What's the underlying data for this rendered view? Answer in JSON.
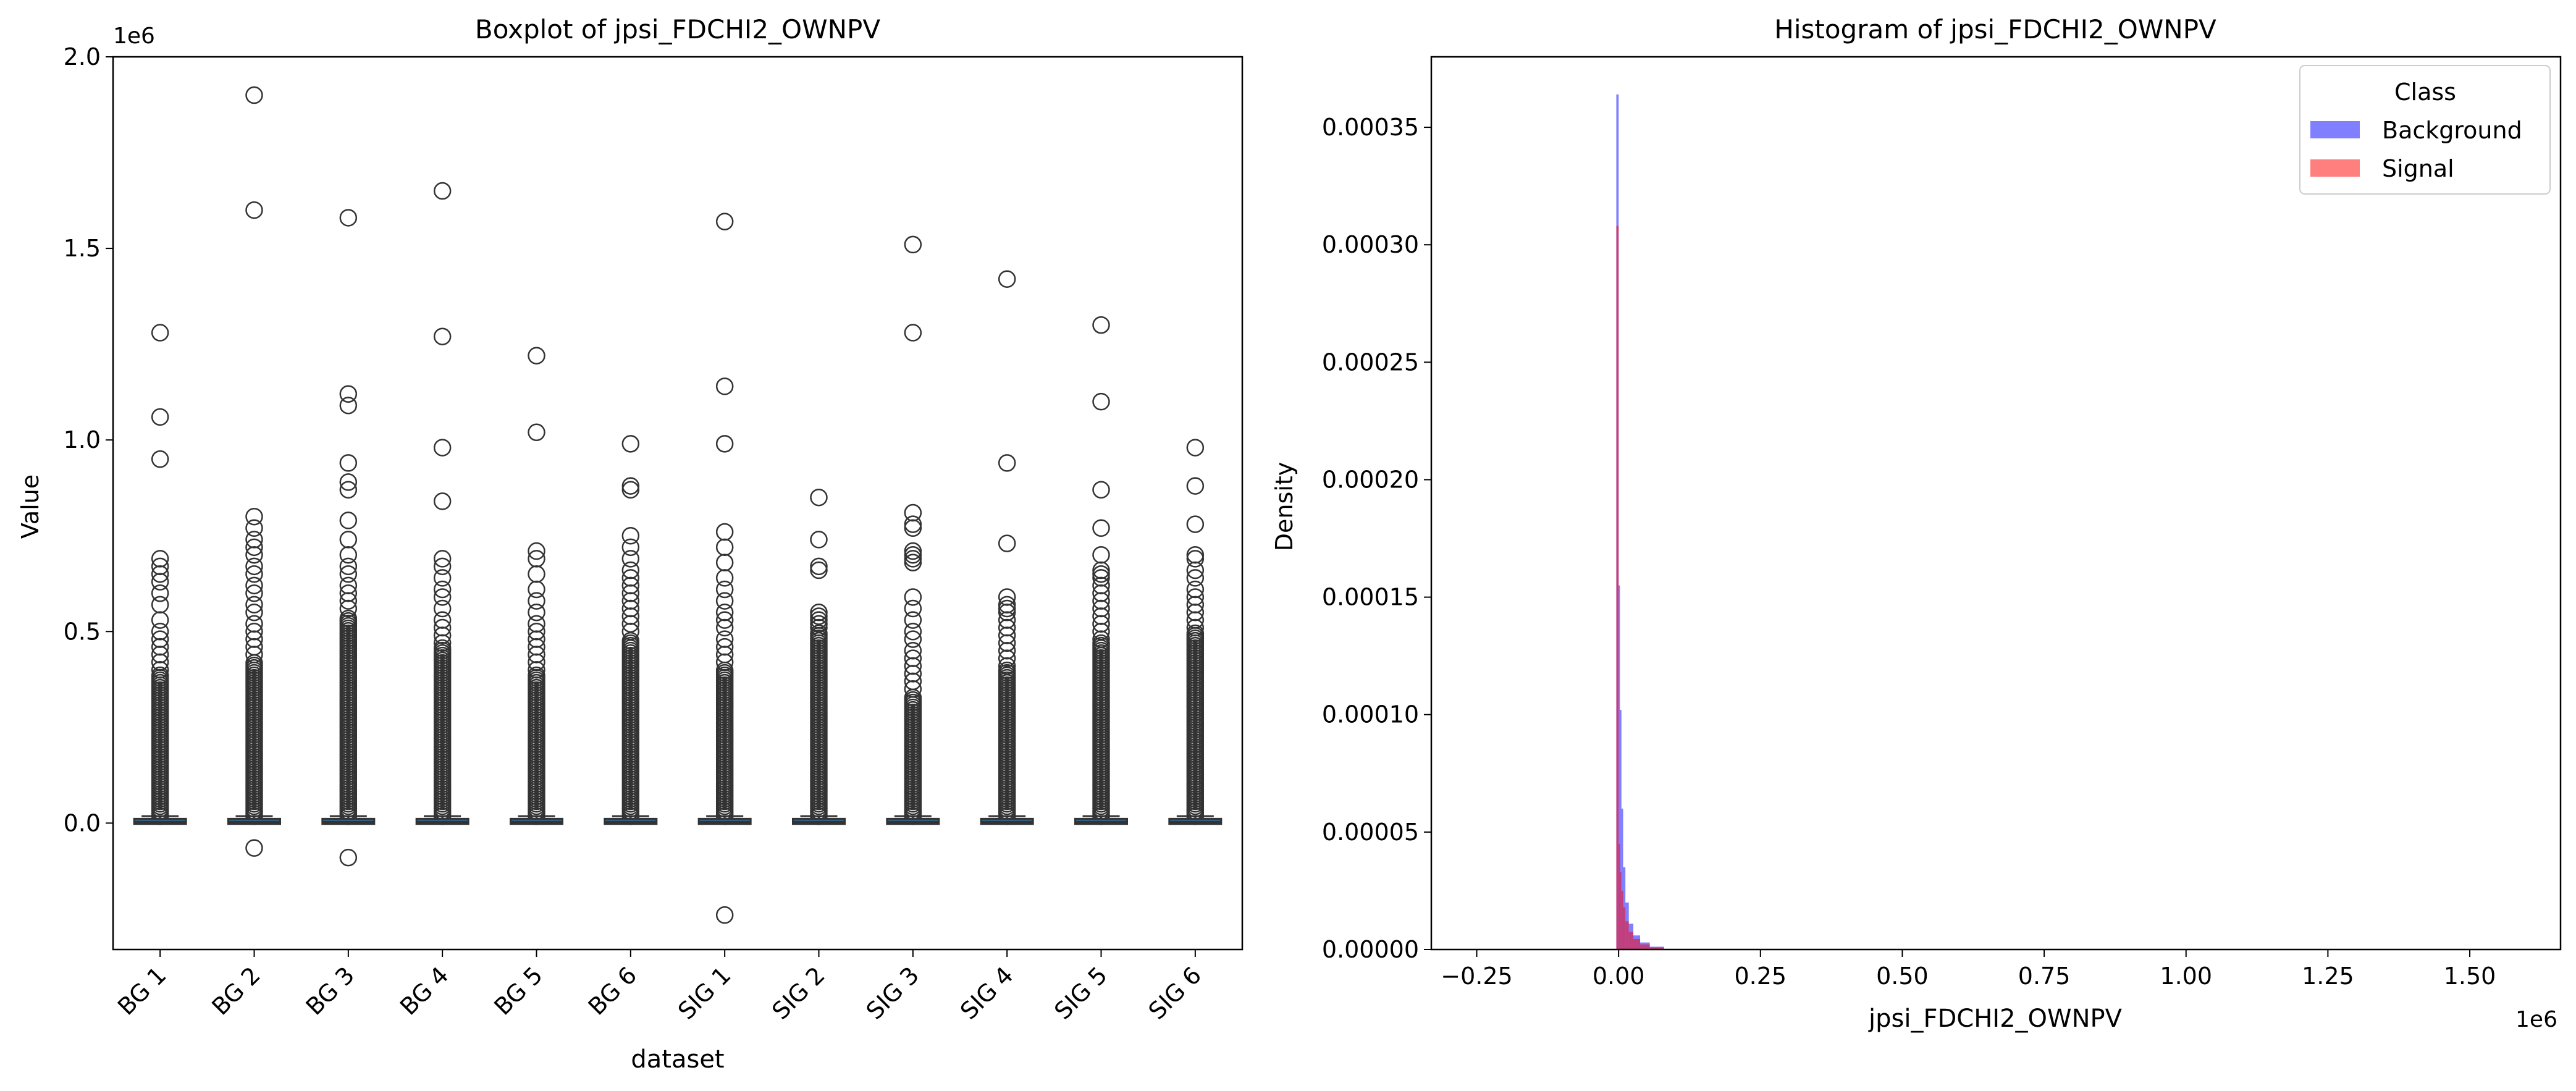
{
  "chart_data": [
    {
      "type": "box",
      "title": "Boxplot of jpsi_FDCHI2_OWNPV",
      "xlabel": "dataset",
      "ylabel": "Value",
      "y_offset_label": "1e6",
      "ylim": [
        -0.33,
        2.0
      ],
      "yticks": [
        0.0,
        0.5,
        1.0,
        1.5,
        2.0
      ],
      "ytick_labels": [
        "0.0",
        "0.5",
        "1.0",
        "1.5",
        "2.0"
      ],
      "categories": [
        "BG 1",
        "BG 2",
        "BG 3",
        "BG 4",
        "BG 5",
        "BG 6",
        "SIG 1",
        "SIG 2",
        "SIG 3",
        "SIG 4",
        "SIG 5",
        "SIG 6"
      ],
      "boxes": [
        {
          "label": "BG 1",
          "median": 0.003,
          "q1": 0.001,
          "q3": 0.008,
          "whislo": 0.0,
          "whishi": 0.018,
          "dense_top": 0.39,
          "fliers": [
            1.28,
            1.06,
            0.95,
            0.69,
            0.67,
            0.65,
            0.63,
            0.6,
            0.57,
            0.53,
            0.5,
            0.48,
            0.46,
            0.44,
            0.42,
            0.4
          ]
        },
        {
          "label": "BG 2",
          "median": 0.003,
          "q1": 0.001,
          "q3": 0.008,
          "whislo": 0.0,
          "whishi": 0.018,
          "dense_top": 0.42,
          "fliers": [
            1.9,
            1.6,
            0.8,
            0.77,
            0.74,
            0.72,
            0.7,
            0.67,
            0.65,
            0.62,
            0.6,
            0.57,
            0.55,
            0.52,
            0.5,
            0.48,
            0.46,
            0.44,
            -0.065
          ]
        },
        {
          "label": "BG 3",
          "median": 0.003,
          "q1": 0.001,
          "q3": 0.008,
          "whislo": 0.0,
          "whishi": 0.018,
          "dense_top": 0.54,
          "fliers": [
            1.58,
            1.12,
            1.09,
            0.94,
            0.89,
            0.87,
            0.79,
            0.74,
            0.7,
            0.67,
            0.65,
            0.62,
            0.6,
            0.58,
            0.56,
            -0.09
          ]
        },
        {
          "label": "BG 4",
          "median": 0.003,
          "q1": 0.001,
          "q3": 0.008,
          "whislo": 0.0,
          "whishi": 0.018,
          "dense_top": 0.46,
          "fliers": [
            1.65,
            1.27,
            0.98,
            0.84,
            0.69,
            0.67,
            0.64,
            0.61,
            0.59,
            0.56,
            0.53,
            0.51,
            0.49,
            0.47
          ]
        },
        {
          "label": "BG 5",
          "median": 0.003,
          "q1": 0.001,
          "q3": 0.008,
          "whislo": 0.0,
          "whishi": 0.018,
          "dense_top": 0.39,
          "fliers": [
            1.22,
            1.02,
            0.71,
            0.69,
            0.65,
            0.61,
            0.58,
            0.55,
            0.52,
            0.5,
            0.48,
            0.46,
            0.44,
            0.42,
            0.4
          ]
        },
        {
          "label": "BG 6",
          "median": 0.003,
          "q1": 0.001,
          "q3": 0.008,
          "whislo": 0.0,
          "whishi": 0.018,
          "dense_top": 0.48,
          "fliers": [
            0.99,
            0.88,
            0.87,
            0.75,
            0.72,
            0.69,
            0.66,
            0.64,
            0.62,
            0.6,
            0.58,
            0.56,
            0.54,
            0.52,
            0.5
          ]
        },
        {
          "label": "SIG 1",
          "median": 0.003,
          "q1": 0.001,
          "q3": 0.008,
          "whislo": 0.0,
          "whishi": 0.018,
          "dense_top": 0.4,
          "fliers": [
            1.57,
            1.14,
            0.99,
            0.76,
            0.72,
            0.68,
            0.64,
            0.61,
            0.58,
            0.55,
            0.53,
            0.51,
            0.48,
            0.46,
            0.44,
            0.42,
            -0.24
          ]
        },
        {
          "label": "SIG 2",
          "median": 0.003,
          "q1": 0.001,
          "q3": 0.008,
          "whislo": 0.0,
          "whishi": 0.018,
          "dense_top": 0.5,
          "fliers": [
            0.85,
            0.74,
            0.67,
            0.66,
            0.55,
            0.54,
            0.53,
            0.52,
            0.51
          ]
        },
        {
          "label": "SIG 3",
          "median": 0.003,
          "q1": 0.001,
          "q3": 0.008,
          "whislo": 0.0,
          "whishi": 0.018,
          "dense_top": 0.33,
          "fliers": [
            1.51,
            1.28,
            0.81,
            0.78,
            0.77,
            0.71,
            0.7,
            0.69,
            0.68,
            0.59,
            0.56,
            0.53,
            0.5,
            0.48,
            0.45,
            0.43,
            0.41,
            0.39,
            0.37,
            0.35
          ]
        },
        {
          "label": "SIG 4",
          "median": 0.003,
          "q1": 0.001,
          "q3": 0.008,
          "whislo": 0.0,
          "whishi": 0.018,
          "dense_top": 0.4,
          "fliers": [
            1.42,
            0.94,
            0.73,
            0.59,
            0.57,
            0.56,
            0.55,
            0.53,
            0.51,
            0.49,
            0.47,
            0.45,
            0.43,
            0.41
          ]
        },
        {
          "label": "SIG 5",
          "median": 0.003,
          "q1": 0.001,
          "q3": 0.008,
          "whislo": 0.0,
          "whishi": 0.018,
          "dense_top": 0.47,
          "fliers": [
            1.3,
            1.1,
            0.87,
            0.77,
            0.7,
            0.66,
            0.65,
            0.64,
            0.62,
            0.6,
            0.58,
            0.56,
            0.54,
            0.52,
            0.5,
            0.48
          ]
        },
        {
          "label": "SIG 6",
          "median": 0.003,
          "q1": 0.001,
          "q3": 0.008,
          "whislo": 0.0,
          "whishi": 0.018,
          "dense_top": 0.5,
          "fliers": [
            0.98,
            0.88,
            0.78,
            0.7,
            0.69,
            0.66,
            0.64,
            0.61,
            0.59,
            0.57,
            0.55,
            0.53,
            0.51
          ]
        }
      ],
      "grid": false
    },
    {
      "type": "histogram",
      "title": "Histogram of jpsi_FDCHI2_OWNPV",
      "xlabel": "jpsi_FDCHI2_OWNPV",
      "ylabel": "Density",
      "x_offset_label": "1e6",
      "xlim": [
        -0.33,
        1.66
      ],
      "ylim": [
        0,
        0.00038
      ],
      "xticks": [
        -0.25,
        0.0,
        0.25,
        0.5,
        0.75,
        1.0,
        1.25,
        1.5
      ],
      "xtick_labels": [
        "−0.25",
        "0.00",
        "0.25",
        "0.50",
        "0.75",
        "1.00",
        "1.25",
        "1.50"
      ],
      "yticks": [
        0,
        5e-05,
        0.0001,
        0.00015,
        0.0002,
        0.00025,
        0.0003,
        0.00035
      ],
      "ytick_labels": [
        "0.00000",
        "0.00005",
        "0.00010",
        "0.00015",
        "0.00020",
        "0.00025",
        "0.00030",
        "0.00035"
      ],
      "legend": {
        "title": "Class",
        "placement": "top-right"
      },
      "series": [
        {
          "name": "Background",
          "color": "#0000ff",
          "alpha": 0.5,
          "bins": [
            [
              -0.004,
              0.0001,
              0.000364
            ],
            [
              0.0001,
              0.0025,
              0.000155
            ],
            [
              0.0025,
              0.005,
              0.000102
            ],
            [
              0.005,
              0.008,
              6e-05
            ],
            [
              0.008,
              0.012,
              3.5e-05
            ],
            [
              0.012,
              0.018,
              2e-05
            ],
            [
              0.018,
              0.026,
              1.1e-05
            ],
            [
              0.026,
              0.038,
              6e-06
            ],
            [
              0.038,
              0.055,
              3e-06
            ],
            [
              0.055,
              0.08,
              1.2e-06
            ]
          ]
        },
        {
          "name": "Signal",
          "color": "#ff0000",
          "alpha": 0.5,
          "bins": [
            [
              -0.004,
              0.0001,
              0.000308
            ],
            [
              0.0001,
              0.0025,
              4.5e-05
            ],
            [
              0.0025,
              0.005,
              3.3e-05
            ],
            [
              0.005,
              0.008,
              2.5e-05
            ],
            [
              0.008,
              0.012,
              1.8e-05
            ],
            [
              0.012,
              0.018,
              1.2e-05
            ],
            [
              0.018,
              0.026,
              7.5e-06
            ],
            [
              0.026,
              0.038,
              4.5e-06
            ],
            [
              0.038,
              0.055,
              2.2e-06
            ],
            [
              0.055,
              0.08,
              9e-07
            ]
          ]
        }
      ]
    }
  ]
}
